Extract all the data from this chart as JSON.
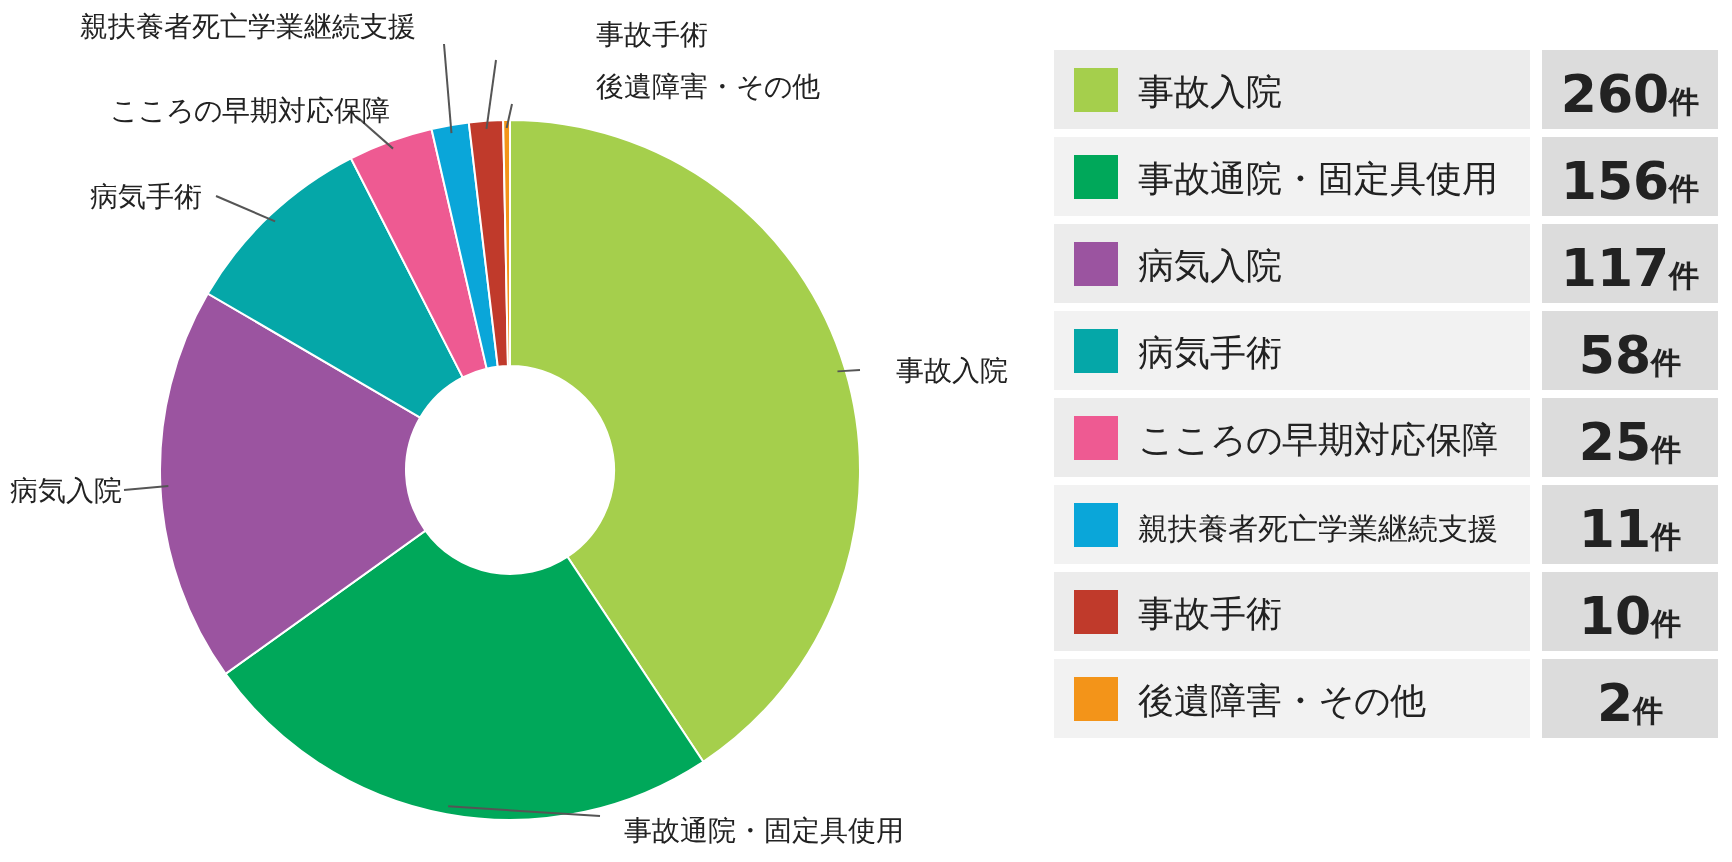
{
  "chart_data": {
    "type": "donut",
    "categories": [
      "事故入院",
      "事故通院・固定具使用",
      "病気入院",
      "病気手術",
      "こころの早期対応保障",
      "親扶養者死亡学業継続支援",
      "事故手術",
      "後遺障害・その他"
    ],
    "values": [
      260,
      156,
      117,
      58,
      25,
      11,
      10,
      2
    ],
    "colors": [
      "#a5cf4c",
      "#00a85a",
      "#9b54a0",
      "#05a7a8",
      "#ee5a92",
      "#0aa6d9",
      "#c03a2b",
      "#f39419"
    ],
    "value_labels": [
      "260件",
      "156件",
      "117件",
      "58件",
      "25件",
      "11件",
      "10件",
      "2件"
    ],
    "legend": "right"
  }
}
